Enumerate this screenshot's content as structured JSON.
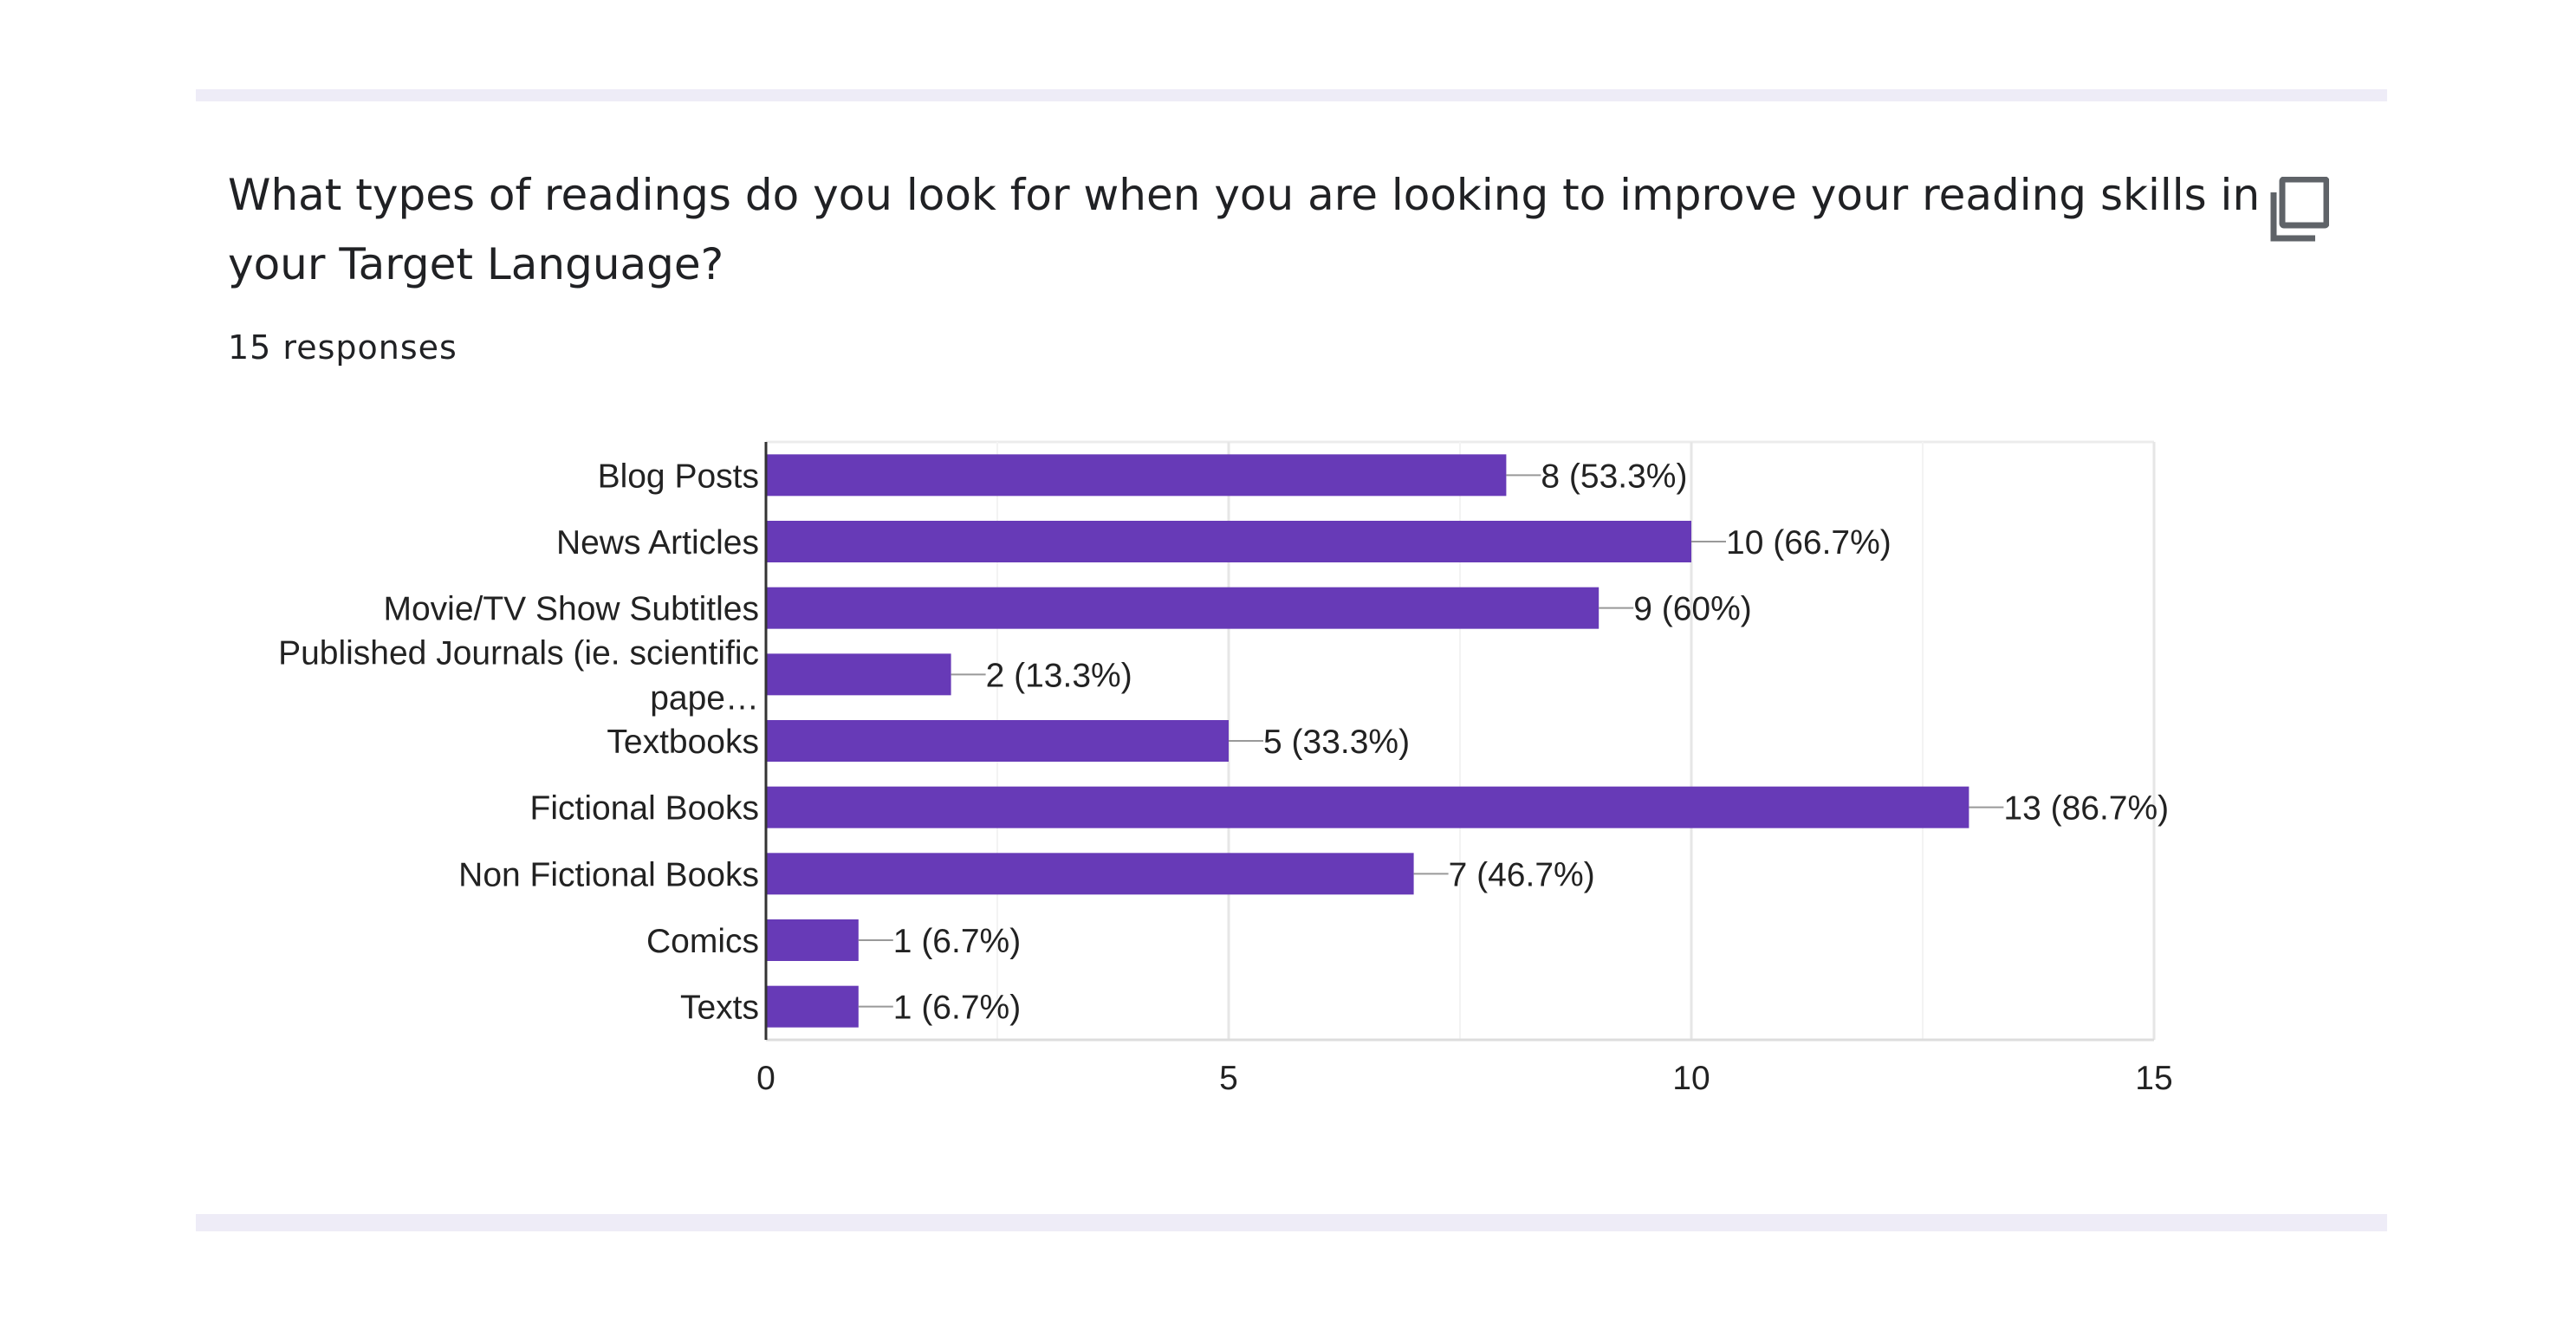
{
  "question": {
    "title": "What types of readings do you look for when you are looking to improve your reading skills in your Target Language?",
    "responses": "15 responses"
  },
  "icons": {
    "copy": "copy-icon"
  },
  "colors": {
    "bar": "#673ab7",
    "band": "#eeecf7",
    "text": "#202124"
  },
  "chart_data": {
    "type": "bar",
    "orientation": "horizontal",
    "categories": [
      "Blog Posts",
      "News Articles",
      "Movie/TV Show Subtitles",
      "Published Journals (ie. scientific pape…",
      "Textbooks",
      "Fictional Books",
      "Non Fictional Books",
      "Comics",
      "Texts"
    ],
    "values": [
      8,
      10,
      9,
      2,
      5,
      13,
      7,
      1,
      1
    ],
    "data_labels": [
      "8 (53.3%)",
      "10 (66.7%)",
      "9 (60%)",
      "2 (13.3%)",
      "5 (33.3%)",
      "13 (86.7%)",
      "7 (46.7%)",
      "1 (6.7%)",
      "1 (6.7%)"
    ],
    "xlim": [
      0,
      15
    ],
    "xticks": [
      0,
      5,
      10,
      15
    ],
    "minor_gridlines": true,
    "legend": "none"
  }
}
